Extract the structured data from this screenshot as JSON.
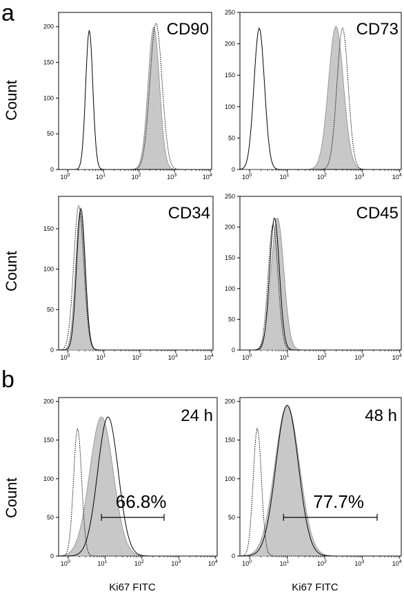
{
  "panel_labels": {
    "a": "a",
    "b": "b"
  },
  "count_label": "Count",
  "chart_data": [
    {
      "type": "area",
      "panel": "a",
      "title": "CD90",
      "xscale": "log",
      "xlim": [
        0.55,
        11000
      ],
      "ylim": [
        0,
        220
      ],
      "yticks": [
        0,
        50,
        100,
        150,
        200
      ],
      "xticks": [
        {
          "base": "10",
          "exp": "0"
        },
        {
          "base": "10",
          "exp": "1"
        },
        {
          "base": "10",
          "exp": "2"
        },
        {
          "base": "10",
          "exp": "3"
        },
        {
          "base": "10",
          "exp": "4"
        }
      ],
      "xlabel": "",
      "series": [
        {
          "style": "outline",
          "peaks": [
            {
              "center": 4,
              "height": 195,
              "width": 0.1
            }
          ]
        },
        {
          "style": "dotted",
          "peaks": [
            {
              "center": 300,
              "height": 205,
              "width": 0.17
            }
          ]
        },
        {
          "style": "filled",
          "peaks": [
            {
              "center": 260,
              "height": 200,
              "width": 0.16
            }
          ]
        }
      ]
    },
    {
      "type": "area",
      "panel": "a",
      "title": "CD73",
      "xscale": "log",
      "xlim": [
        0.55,
        11000
      ],
      "ylim": [
        0,
        250
      ],
      "yticks": [
        0,
        50,
        100,
        150,
        200,
        250
      ],
      "xticks": [
        {
          "base": "10",
          "exp": "0"
        },
        {
          "base": "10",
          "exp": "1"
        },
        {
          "base": "10",
          "exp": "2"
        },
        {
          "base": "10",
          "exp": "3"
        },
        {
          "base": "10",
          "exp": "4"
        }
      ],
      "xlabel": "",
      "series": [
        {
          "style": "outline",
          "peaks": [
            {
              "center": 1.8,
              "height": 225,
              "width": 0.14
            }
          ]
        },
        {
          "style": "dotted",
          "peaks": [
            {
              "center": 300,
              "height": 225,
              "width": 0.15
            }
          ]
        },
        {
          "style": "filled",
          "peaks": [
            {
              "center": 200,
              "height": 228,
              "width": 0.2
            }
          ]
        }
      ]
    },
    {
      "type": "area",
      "panel": "a",
      "title": "CD34",
      "xscale": "log",
      "xlim": [
        0.55,
        11000
      ],
      "ylim": [
        0,
        190
      ],
      "yticks": [
        0,
        50,
        100,
        150
      ],
      "xticks": [
        {
          "base": "10",
          "exp": "0"
        },
        {
          "base": "10",
          "exp": "1"
        },
        {
          "base": "10",
          "exp": "2"
        },
        {
          "base": "10",
          "exp": "3"
        },
        {
          "base": "10",
          "exp": "4"
        }
      ],
      "xlabel": "",
      "series": [
        {
          "style": "filled",
          "peaks": [
            {
              "center": 2.2,
              "height": 172,
              "width": 0.13
            }
          ]
        },
        {
          "style": "outline",
          "peaks": [
            {
              "center": 2.3,
              "height": 175,
              "width": 0.12
            }
          ]
        },
        {
          "style": "dotted",
          "peaks": [
            {
              "center": 2.0,
              "height": 178,
              "width": 0.14
            }
          ]
        }
      ]
    },
    {
      "type": "area",
      "panel": "a",
      "title": "CD45",
      "xscale": "log",
      "xlim": [
        0.55,
        11000
      ],
      "ylim": [
        0,
        250
      ],
      "yticks": [
        0,
        50,
        100,
        150,
        200,
        250
      ],
      "xticks": [
        {
          "base": "10",
          "exp": "0"
        },
        {
          "base": "10",
          "exp": "1"
        },
        {
          "base": "10",
          "exp": "2"
        },
        {
          "base": "10",
          "exp": "3"
        },
        {
          "base": "10",
          "exp": "4"
        }
      ],
      "xlabel": "",
      "series": [
        {
          "style": "filled",
          "peaks": [
            {
              "center": 5.5,
              "height": 215,
              "width": 0.17
            }
          ]
        },
        {
          "style": "outline",
          "peaks": [
            {
              "center": 4.6,
              "height": 215,
              "width": 0.13
            }
          ]
        },
        {
          "style": "dotted",
          "peaks": [
            {
              "center": 4.2,
              "height": 205,
              "width": 0.13
            }
          ]
        }
      ]
    },
    {
      "type": "area",
      "panel": "b",
      "title": "24 h",
      "xscale": "log",
      "xlim": [
        0.55,
        11000
      ],
      "ylim": [
        0,
        205
      ],
      "yticks": [
        0,
        50,
        100,
        150,
        200
      ],
      "xticks": [
        {
          "base": "10",
          "exp": "0"
        },
        {
          "base": "10",
          "exp": "1"
        },
        {
          "base": "10",
          "exp": "2"
        },
        {
          "base": "10",
          "exp": "3"
        },
        {
          "base": "10",
          "exp": "4"
        }
      ],
      "xlabel": "Ki67 FITC",
      "gate": {
        "label": "66.8%",
        "from": 8,
        "to": 400,
        "y": 50
      },
      "series": [
        {
          "style": "dotted",
          "peaks": [
            {
              "center": 1.8,
              "height": 165,
              "width": 0.11
            }
          ]
        },
        {
          "style": "filled",
          "peaks": [
            {
              "center": 8,
              "height": 180,
              "width": 0.32
            }
          ]
        },
        {
          "style": "outline",
          "peaks": [
            {
              "center": 12,
              "height": 180,
              "width": 0.28
            }
          ]
        }
      ]
    },
    {
      "type": "area",
      "panel": "b",
      "title": "48 h",
      "xscale": "log",
      "xlim": [
        0.55,
        11000
      ],
      "ylim": [
        0,
        205
      ],
      "yticks": [
        0,
        50,
        100,
        150,
        200
      ],
      "xticks": [
        {
          "base": "10",
          "exp": "0"
        },
        {
          "base": "10",
          "exp": "1"
        },
        {
          "base": "10",
          "exp": "2"
        },
        {
          "base": "10",
          "exp": "3"
        },
        {
          "base": "10",
          "exp": "4"
        }
      ],
      "xlabel": "Ki67 FITC",
      "gate": {
        "label": "77.7%",
        "from": 8,
        "to": 2500,
        "y": 50
      },
      "series": [
        {
          "style": "dotted",
          "peaks": [
            {
              "center": 1.6,
              "height": 165,
              "width": 0.11
            }
          ]
        },
        {
          "style": "filled",
          "peaks": [
            {
              "center": 10,
              "height": 195,
              "width": 0.33
            }
          ]
        },
        {
          "style": "outline",
          "peaks": [
            {
              "center": 10,
              "height": 195,
              "width": 0.3
            }
          ]
        }
      ]
    }
  ]
}
